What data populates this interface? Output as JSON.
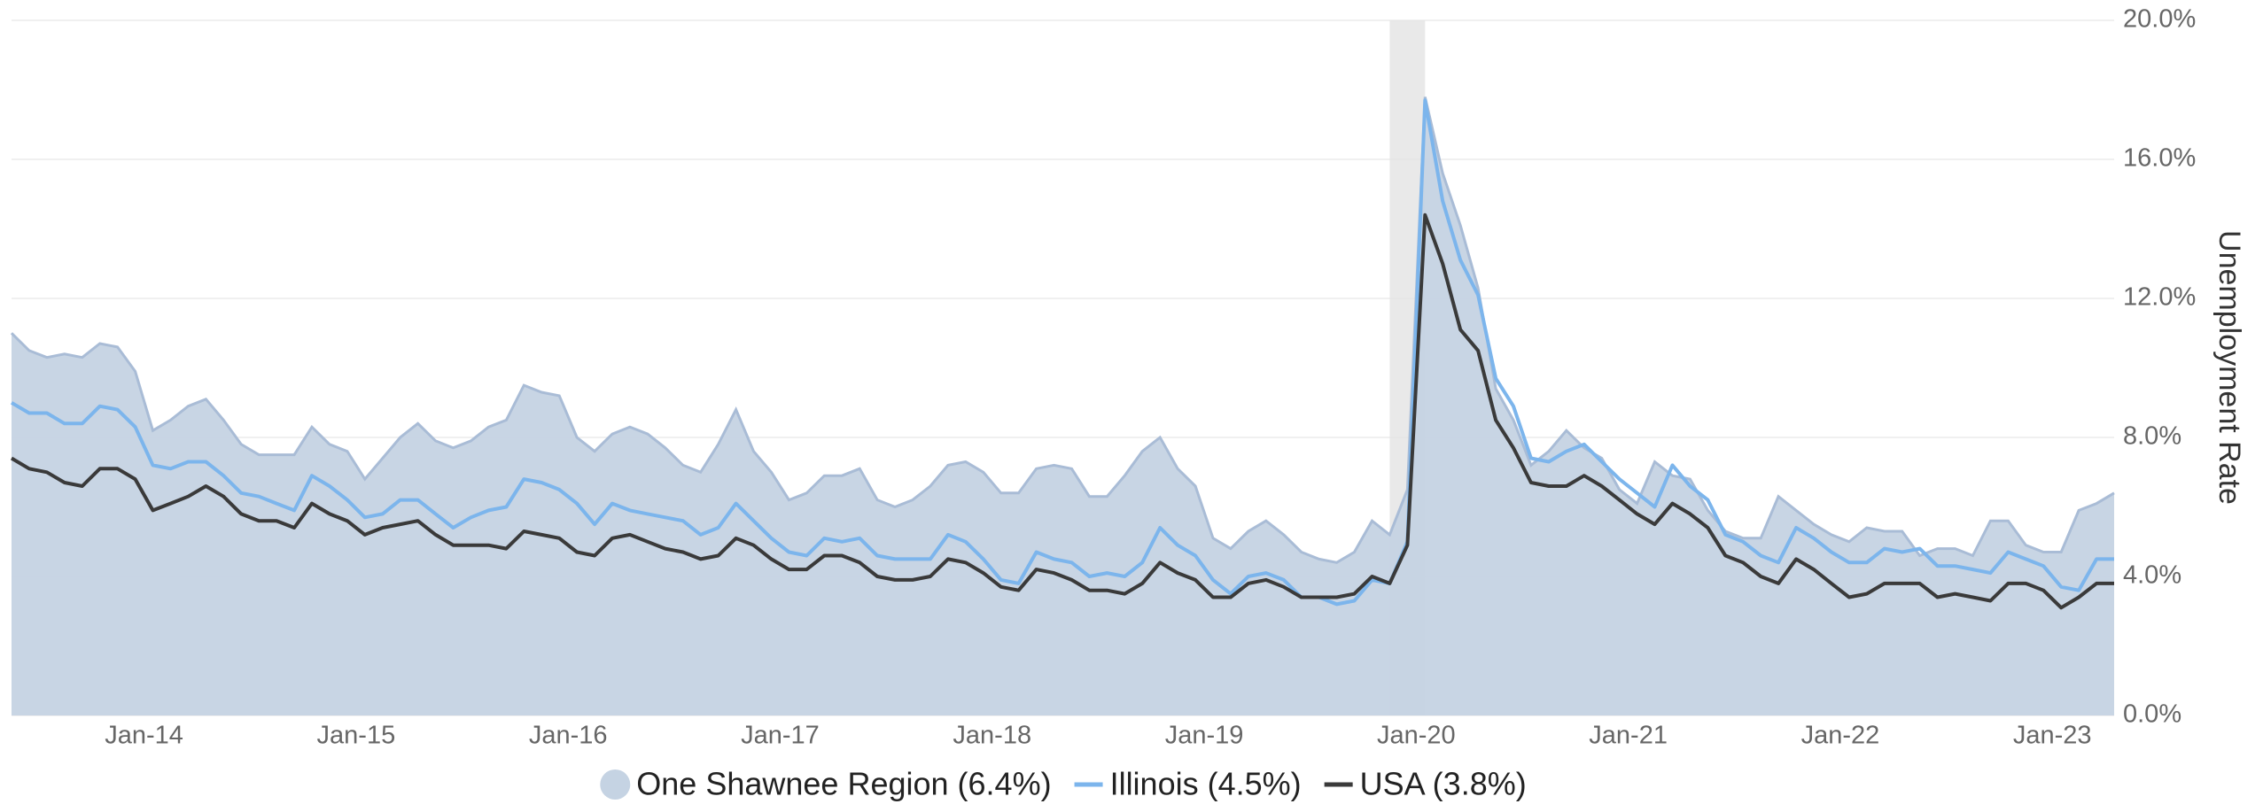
{
  "chart_data": {
    "type": "line",
    "y_axis_label": "Unemployment Rate",
    "y_axis_position": "right",
    "grid": true,
    "shaded_range": [
      78,
      80
    ],
    "categories": [
      null,
      null,
      null,
      null,
      null,
      null,
      null,
      "Jan-14",
      null,
      null,
      null,
      null,
      null,
      null,
      null,
      null,
      null,
      null,
      null,
      "Jan-15",
      null,
      null,
      null,
      null,
      null,
      null,
      null,
      null,
      null,
      null,
      null,
      "Jan-16",
      null,
      null,
      null,
      null,
      null,
      null,
      null,
      null,
      null,
      null,
      null,
      "Jan-17",
      null,
      null,
      null,
      null,
      null,
      null,
      null,
      null,
      null,
      null,
      null,
      "Jan-18",
      null,
      null,
      null,
      null,
      null,
      null,
      null,
      null,
      null,
      null,
      null,
      "Jan-19",
      null,
      null,
      null,
      null,
      null,
      null,
      null,
      null,
      null,
      null,
      null,
      "Jan-20",
      null,
      null,
      null,
      null,
      null,
      null,
      null,
      null,
      null,
      null,
      null,
      "Jan-21",
      null,
      null,
      null,
      null,
      null,
      null,
      null,
      null,
      null,
      null,
      null,
      "Jan-22",
      null,
      null,
      null,
      null,
      null,
      null,
      null,
      null,
      null,
      null,
      null,
      "Jan-23",
      null,
      null,
      null,
      null
    ],
    "ylim": [
      0,
      20
    ],
    "yticks": [
      {
        "value": 0,
        "label": "0.0%"
      },
      {
        "value": 4,
        "label": "4.0%"
      },
      {
        "value": 8,
        "label": "8.0%"
      },
      {
        "value": 12,
        "label": "12.0%"
      },
      {
        "value": 16,
        "label": "16.0%"
      },
      {
        "value": 20,
        "label": "20.0%"
      }
    ],
    "series": [
      {
        "name": "One Shawnee Region (6.4%)",
        "style": "area",
        "color": "#c5d3e3",
        "values": [
          11.0,
          10.5,
          10.3,
          10.4,
          10.3,
          10.7,
          10.6,
          9.9,
          8.2,
          8.5,
          8.9,
          9.1,
          8.5,
          7.8,
          7.5,
          7.5,
          7.5,
          8.3,
          7.8,
          7.6,
          6.8,
          7.4,
          8.0,
          8.4,
          7.9,
          7.7,
          7.9,
          8.3,
          8.5,
          9.5,
          9.3,
          9.2,
          8.0,
          7.6,
          8.1,
          8.3,
          8.1,
          7.7,
          7.2,
          7.0,
          7.8,
          8.8,
          7.6,
          7.0,
          6.2,
          6.4,
          6.9,
          6.9,
          7.1,
          6.2,
          6.0,
          6.2,
          6.6,
          7.2,
          7.3,
          7.0,
          6.4,
          6.4,
          7.1,
          7.2,
          7.1,
          6.3,
          6.3,
          6.9,
          7.6,
          8.0,
          7.1,
          6.6,
          5.1,
          4.8,
          5.3,
          5.6,
          5.2,
          4.7,
          4.5,
          4.4,
          4.7,
          5.6,
          5.2,
          6.5,
          17.8,
          15.6,
          14.1,
          12.3,
          9.4,
          8.5,
          7.2,
          7.6,
          8.2,
          7.7,
          7.4,
          6.5,
          6.1,
          7.3,
          6.9,
          6.8,
          5.9,
          5.3,
          5.1,
          5.1,
          6.3,
          5.9,
          5.5,
          5.2,
          5.0,
          5.4,
          5.3,
          5.3,
          4.6,
          4.8,
          4.8,
          4.6,
          5.6,
          5.6,
          4.9,
          4.7,
          4.7,
          5.9,
          6.1,
          6.4
        ]
      },
      {
        "name": "Illinois (4.5%)",
        "style": "line",
        "color": "#7cb5ec",
        "values": [
          9.0,
          8.7,
          8.7,
          8.4,
          8.4,
          8.9,
          8.8,
          8.3,
          7.2,
          7.1,
          7.3,
          7.3,
          6.9,
          6.4,
          6.3,
          6.1,
          5.9,
          6.9,
          6.6,
          6.2,
          5.7,
          5.8,
          6.2,
          6.2,
          5.8,
          5.4,
          5.7,
          5.9,
          6.0,
          6.8,
          6.7,
          6.5,
          6.1,
          5.5,
          6.1,
          5.9,
          5.8,
          5.7,
          5.6,
          5.2,
          5.4,
          6.1,
          5.6,
          5.1,
          4.7,
          4.6,
          5.1,
          5.0,
          5.1,
          4.6,
          4.5,
          4.5,
          4.5,
          5.2,
          5.0,
          4.5,
          3.9,
          3.8,
          4.7,
          4.5,
          4.4,
          4.0,
          4.1,
          4.0,
          4.4,
          5.4,
          4.9,
          4.6,
          3.9,
          3.5,
          4.0,
          4.1,
          3.9,
          3.4,
          3.4,
          3.2,
          3.3,
          3.9,
          3.8,
          5.0,
          17.7,
          14.8,
          13.1,
          12.1,
          9.7,
          8.9,
          7.4,
          7.3,
          7.6,
          7.8,
          7.3,
          6.8,
          6.4,
          6.0,
          7.2,
          6.6,
          6.2,
          5.2,
          5.0,
          4.6,
          4.4,
          5.4,
          5.1,
          4.7,
          4.4,
          4.4,
          4.8,
          4.7,
          4.8,
          4.3,
          4.3,
          4.2,
          4.1,
          4.7,
          4.5,
          4.3,
          3.7,
          3.6,
          4.5,
          4.5
        ]
      },
      {
        "name": "USA (3.8%)",
        "style": "line",
        "color": "#3a3a3a",
        "values": [
          7.4,
          7.1,
          7.0,
          6.7,
          6.6,
          7.1,
          7.1,
          6.8,
          5.9,
          6.1,
          6.3,
          6.6,
          6.3,
          5.8,
          5.6,
          5.6,
          5.4,
          6.1,
          5.8,
          5.6,
          5.2,
          5.4,
          5.5,
          5.6,
          5.2,
          4.9,
          4.9,
          4.9,
          4.8,
          5.3,
          5.2,
          5.1,
          4.7,
          4.6,
          5.1,
          5.2,
          5.0,
          4.8,
          4.7,
          4.5,
          4.6,
          5.1,
          4.9,
          4.5,
          4.2,
          4.2,
          4.6,
          4.6,
          4.4,
          4.0,
          3.9,
          3.9,
          4.0,
          4.5,
          4.4,
          4.1,
          3.7,
          3.6,
          4.2,
          4.1,
          3.9,
          3.6,
          3.6,
          3.5,
          3.8,
          4.4,
          4.1,
          3.9,
          3.4,
          3.4,
          3.8,
          3.9,
          3.7,
          3.4,
          3.4,
          3.4,
          3.5,
          4.0,
          3.8,
          4.9,
          14.4,
          13.0,
          11.1,
          10.5,
          8.5,
          7.7,
          6.7,
          6.6,
          6.6,
          6.9,
          6.6,
          6.2,
          5.8,
          5.5,
          6.1,
          5.8,
          5.4,
          4.6,
          4.4,
          4.0,
          3.8,
          4.5,
          4.2,
          3.8,
          3.4,
          3.5,
          3.8,
          3.8,
          3.8,
          3.4,
          3.5,
          3.4,
          3.3,
          3.8,
          3.8,
          3.6,
          3.1,
          3.4,
          3.8,
          3.8
        ]
      }
    ]
  }
}
